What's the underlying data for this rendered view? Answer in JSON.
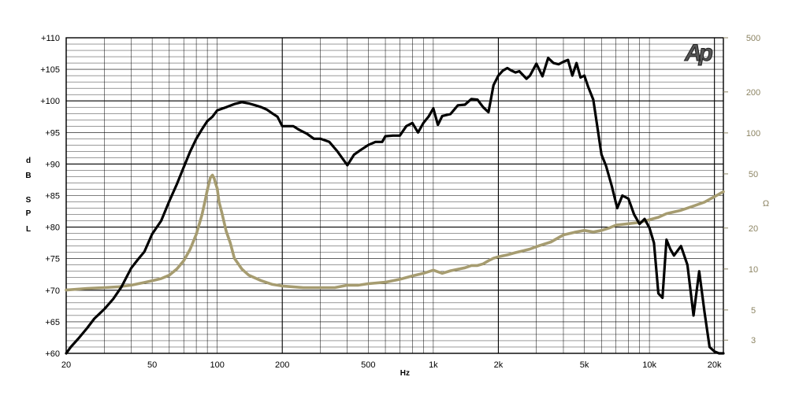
{
  "chart_data": {
    "type": "line",
    "logo": "Ap",
    "xlabel": "Hz",
    "ylabel_left": [
      "d",
      "B",
      "S",
      "P",
      "L"
    ],
    "ylabel_right": "Ω",
    "x_scale": "log",
    "xlim": [
      20,
      22000
    ],
    "ylim_left": [
      60,
      110
    ],
    "ylim_right": [
      2.4,
      500
    ],
    "y_right_scale": "log",
    "grid": true,
    "x_ticks": [
      {
        "value": 20,
        "label": "20"
      },
      {
        "value": 50,
        "label": "50"
      },
      {
        "value": 100,
        "label": "100"
      },
      {
        "value": 200,
        "label": "200"
      },
      {
        "value": 500,
        "label": "500"
      },
      {
        "value": 1000,
        "label": "1k"
      },
      {
        "value": 2000,
        "label": "2k"
      },
      {
        "value": 5000,
        "label": "5k"
      },
      {
        "value": 10000,
        "label": "10k"
      },
      {
        "value": 20000,
        "label": "20k"
      }
    ],
    "y_left_ticks": [
      {
        "value": 110,
        "label": "+110"
      },
      {
        "value": 105,
        "label": "+105"
      },
      {
        "value": 100,
        "label": "+100"
      },
      {
        "value": 95,
        "label": "+95"
      },
      {
        "value": 90,
        "label": "+90"
      },
      {
        "value": 85,
        "label": "+85"
      },
      {
        "value": 80,
        "label": "+80"
      },
      {
        "value": 75,
        "label": "+75"
      },
      {
        "value": 70,
        "label": "+70"
      },
      {
        "value": 65,
        "label": "+65"
      },
      {
        "value": 60,
        "label": "+60"
      }
    ],
    "y_right_ticks": [
      {
        "value": 500,
        "label": "500"
      },
      {
        "value": 200,
        "label": "200"
      },
      {
        "value": 100,
        "label": "100"
      },
      {
        "value": 50,
        "label": "50"
      },
      {
        "value": 20,
        "label": "20"
      },
      {
        "value": 10,
        "label": "10"
      },
      {
        "value": 5,
        "label": "5"
      },
      {
        "value": 3,
        "label": "3"
      }
    ],
    "series": [
      {
        "axis": "left",
        "color": "#000000",
        "x": [
          20,
          21,
          23,
          25,
          27,
          30,
          33,
          36,
          40,
          43,
          46,
          50,
          55,
          60,
          65,
          70,
          75,
          80,
          85,
          90,
          95,
          100,
          110,
          120,
          130,
          140,
          150,
          160,
          170,
          180,
          190,
          200,
          210,
          225,
          240,
          260,
          280,
          300,
          330,
          360,
          400,
          430,
          460,
          500,
          540,
          580,
          600,
          650,
          700,
          750,
          800,
          850,
          900,
          950,
          1000,
          1050,
          1100,
          1200,
          1300,
          1400,
          1500,
          1600,
          1700,
          1800,
          1900,
          2000,
          2100,
          2200,
          2300,
          2400,
          2500,
          2700,
          2800,
          3000,
          3200,
          3400,
          3600,
          3800,
          4000,
          4200,
          4400,
          4600,
          4800,
          5000,
          5200,
          5500,
          6000,
          6300,
          6700,
          7100,
          7500,
          8000,
          8500,
          9000,
          9500,
          10000,
          10500,
          11000,
          11500,
          12000,
          12500,
          13000,
          14000,
          15000,
          16000,
          17000,
          18000,
          19000,
          20000,
          21000,
          22000
        ],
        "values": [
          60,
          61,
          62.5,
          64,
          65.5,
          67,
          68.6,
          70.5,
          73.5,
          74.9,
          76.1,
          78.9,
          81,
          84.1,
          86.8,
          89.5,
          92,
          94,
          95.5,
          96.8,
          97.5,
          98.5,
          99,
          99.5,
          99.8,
          99.6,
          99.3,
          99,
          98.6,
          98,
          97.5,
          96,
          96,
          96,
          95.4,
          94.8,
          94,
          94,
          93.5,
          92,
          89.8,
          91.5,
          92.2,
          93,
          93.5,
          93.5,
          94.4,
          94.5,
          94.5,
          96,
          96.5,
          95,
          96.5,
          97.5,
          98.8,
          96.2,
          97.6,
          97.9,
          99.3,
          99.4,
          100.3,
          100.2,
          99,
          98.2,
          102.5,
          104,
          104.8,
          105.2,
          104.8,
          104.5,
          104.7,
          103.5,
          104,
          105.9,
          103.9,
          106.8,
          106,
          105.8,
          106.2,
          106.5,
          104,
          106,
          103.7,
          104,
          102.3,
          100.2,
          91.5,
          89.7,
          86.5,
          83,
          85,
          84.5,
          82,
          80.5,
          81.3,
          79.9,
          77.5,
          69.5,
          68.8,
          78,
          76.5,
          75.5,
          77,
          74,
          66,
          73,
          66.5,
          61,
          60.3,
          60,
          60
        ]
      },
      {
        "axis": "right",
        "color": "#a69c70",
        "x": [
          20,
          25,
          30,
          35,
          40,
          45,
          50,
          55,
          60,
          65,
          70,
          75,
          80,
          85,
          88,
          90,
          93,
          95,
          97,
          98,
          100,
          102,
          105,
          110,
          115,
          120,
          130,
          140,
          160,
          180,
          200,
          250,
          300,
          350,
          400,
          450,
          500,
          600,
          700,
          800,
          900,
          1000,
          1100,
          1200,
          1400,
          1500,
          1600,
          1700,
          1800,
          1900,
          2000,
          2200,
          2400,
          2600,
          2800,
          3000,
          3500,
          4000,
          4500,
          5000,
          5500,
          6000,
          6500,
          7000,
          8000,
          9000,
          10000,
          11000,
          12000,
          14000,
          16000,
          18000,
          20000,
          22000
        ],
        "values": [
          7,
          7.2,
          7.3,
          7.4,
          7.6,
          7.9,
          8.2,
          8.5,
          9,
          10,
          11.5,
          14,
          18,
          25,
          32,
          38,
          47,
          49,
          46,
          43,
          39,
          31,
          26,
          19,
          15.5,
          12,
          10,
          9,
          8.2,
          7.7,
          7.5,
          7.3,
          7.3,
          7.3,
          7.6,
          7.6,
          7.8,
          8,
          8.4,
          8.9,
          9.3,
          9.8,
          9.3,
          9.7,
          10.2,
          10.6,
          10.6,
          10.9,
          11.5,
          12,
          12.3,
          12.7,
          13.2,
          13.6,
          14,
          14.6,
          15.8,
          17.8,
          18.6,
          19.2,
          18.7,
          19.2,
          20,
          21,
          21.5,
          22,
          23,
          24,
          25.5,
          27,
          29,
          31,
          34,
          37
        ]
      }
    ]
  }
}
